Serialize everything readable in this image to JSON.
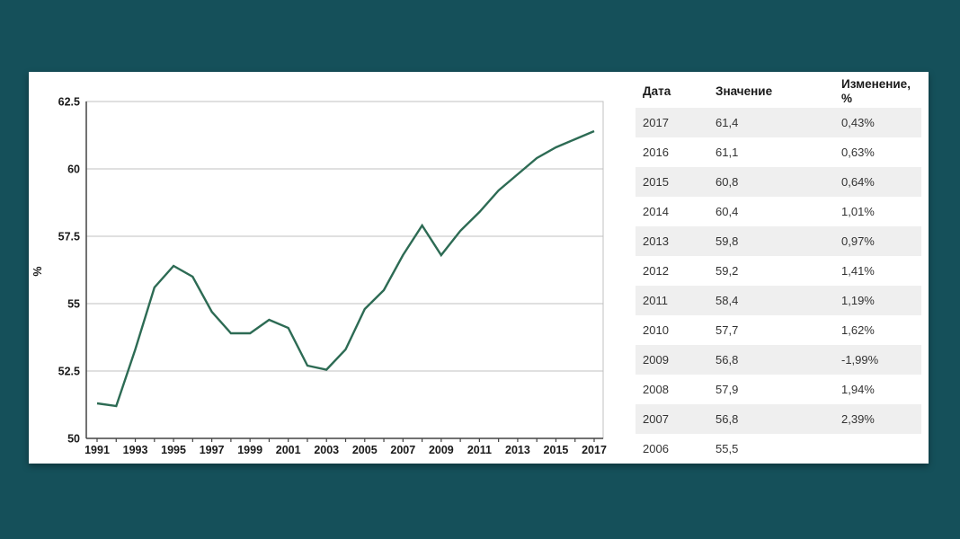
{
  "theme": {
    "page_bg": "#15505a",
    "card_bg": "#ffffff",
    "row_stripe": "#efefef",
    "cell_text": "#333333",
    "header_text": "#1a1a1a"
  },
  "chart_data": {
    "type": "line",
    "title": "",
    "xlabel": "",
    "ylabel": "%",
    "x": [
      1991,
      1992,
      1993,
      1994,
      1995,
      1996,
      1997,
      1998,
      1999,
      2000,
      2001,
      2002,
      2003,
      2004,
      2005,
      2006,
      2007,
      2008,
      2009,
      2010,
      2011,
      2012,
      2013,
      2014,
      2015,
      2016,
      2017
    ],
    "values": [
      51.3,
      51.2,
      53.3,
      55.6,
      56.4,
      56.0,
      54.7,
      53.9,
      53.9,
      54.4,
      54.1,
      52.7,
      52.55,
      53.3,
      54.8,
      55.5,
      56.8,
      57.9,
      56.8,
      57.7,
      58.4,
      59.2,
      59.8,
      60.4,
      60.8,
      61.1,
      61.4
    ],
    "ylim": [
      50,
      62.5
    ],
    "yticks": [
      "50",
      "52.5",
      "55",
      "57.5",
      "60",
      "62.5"
    ],
    "xtick_label_step": 2,
    "grid": true,
    "legend_position": "none",
    "line_color": "#2d6b54",
    "grid_color": "#c0c0c0",
    "axis_color": "#444444",
    "label_color": "#1a1a1a"
  },
  "table": {
    "headers": [
      "Дата",
      "Значение",
      "Изменение, %"
    ],
    "rows": [
      [
        "2017",
        "61,4",
        "0,43%"
      ],
      [
        "2016",
        "61,1",
        "0,63%"
      ],
      [
        "2015",
        "60,8",
        "0,64%"
      ],
      [
        "2014",
        "60,4",
        "1,01%"
      ],
      [
        "2013",
        "59,8",
        "0,97%"
      ],
      [
        "2012",
        "59,2",
        "1,41%"
      ],
      [
        "2011",
        "58,4",
        "1,19%"
      ],
      [
        "2010",
        "57,7",
        "1,62%"
      ],
      [
        "2009",
        "56,8",
        "-1,99%"
      ],
      [
        "2008",
        "57,9",
        "1,94%"
      ],
      [
        "2007",
        "56,8",
        "2,39%"
      ],
      [
        "2006",
        "55,5",
        ""
      ]
    ]
  }
}
